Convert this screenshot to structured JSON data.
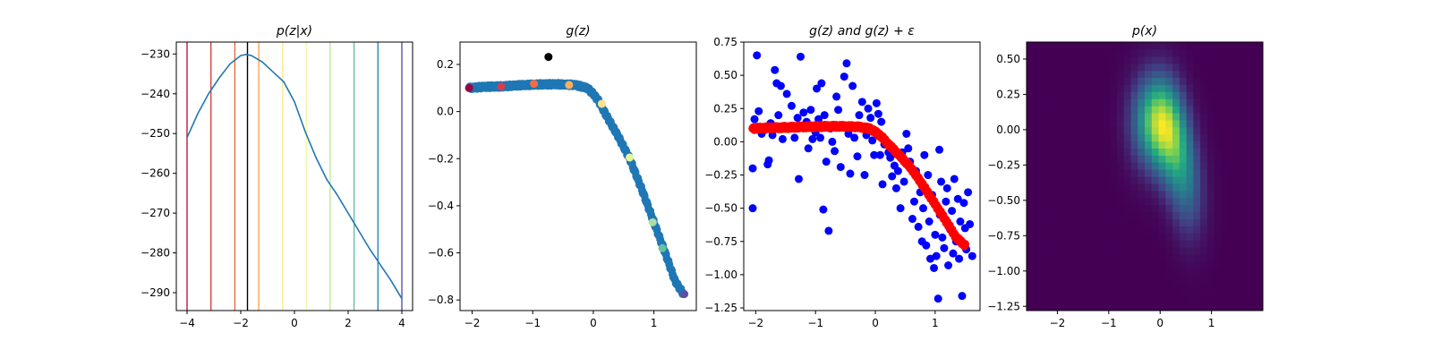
{
  "chart_data": [
    {
      "type": "line",
      "title": "p(z|x)",
      "xlim": [
        -4.4,
        4.4
      ],
      "ylim": [
        -294.5,
        -227.0
      ],
      "xticks": [
        "−4",
        "−2",
        "0",
        "2",
        "4"
      ],
      "xtick_values": [
        -4,
        -2,
        0,
        2,
        4
      ],
      "yticks": [
        "−290",
        "−280",
        "−270",
        "−260",
        "−250",
        "−240",
        "−230"
      ],
      "ytick_values": [
        -290,
        -280,
        -270,
        -260,
        -250,
        -240,
        -230
      ],
      "series": [
        {
          "color": "#1f77b4",
          "x": [
            -4.0,
            -3.6,
            -3.2,
            -2.8,
            -2.4,
            -2.0,
            -1.8,
            -1.6,
            -1.2,
            -0.8,
            -0.4,
            0.0,
            0.4,
            0.8,
            1.2,
            1.3,
            1.6,
            2.0,
            2.4,
            2.8,
            3.2,
            3.6,
            4.0
          ],
          "y": [
            -251.0,
            -245.0,
            -240.0,
            -236.0,
            -232.5,
            -230.4,
            -230.1,
            -230.4,
            -232.0,
            -234.5,
            -237.0,
            -242.0,
            -249.5,
            -256.0,
            -261.5,
            -262.5,
            -265.5,
            -270.0,
            -274.5,
            -279.0,
            -283.0,
            -287.0,
            -291.5
          ]
        }
      ],
      "vlines": [
        {
          "x": -4.0,
          "color": "#c4153c"
        },
        {
          "x": -3.11,
          "color": "#d8433f"
        },
        {
          "x": -2.22,
          "color": "#f1683c"
        },
        {
          "x": -1.33,
          "color": "#fca453"
        },
        {
          "x": -0.44,
          "color": "#fde98e"
        },
        {
          "x": 0.44,
          "color": "#f3f89f"
        },
        {
          "x": 1.33,
          "color": "#c3e89c"
        },
        {
          "x": 2.22,
          "color": "#64c2a6"
        },
        {
          "x": 3.11,
          "color": "#2f86bb"
        },
        {
          "x": 4.0,
          "color": "#5e4fa2"
        },
        {
          "x": -1.75,
          "color": "#000000"
        }
      ]
    },
    {
      "type": "scatter",
      "title": "g(z)",
      "xlim": [
        -2.2,
        1.7
      ],
      "ylim": [
        -0.845,
        0.295
      ],
      "xticks": [
        "−2",
        "−1",
        "0",
        "1"
      ],
      "xtick_values": [
        -2,
        -1,
        0,
        1
      ],
      "yticks": [
        "−0.8",
        "−0.6",
        "−0.4",
        "−0.2",
        "0.0",
        "0.2"
      ],
      "ytick_values": [
        -0.8,
        -0.6,
        -0.4,
        -0.2,
        0.0,
        0.2
      ],
      "curve_color": "#1f77b4",
      "curve": {
        "x": [
          -2.05,
          -1.8,
          -1.5,
          -1.2,
          -0.9,
          -0.6,
          -0.3,
          -0.1,
          0.0,
          0.1,
          0.2,
          0.4,
          0.6,
          0.8,
          1.0,
          1.2,
          1.35,
          1.5
        ],
        "y": [
          0.1,
          0.105,
          0.107,
          0.112,
          0.115,
          0.116,
          0.113,
          0.1,
          0.075,
          0.04,
          -0.01,
          -0.1,
          -0.2,
          -0.33,
          -0.47,
          -0.61,
          -0.72,
          -0.78
        ]
      },
      "highlight_points": [
        {
          "x": -2.05,
          "y": 0.1,
          "color": "#9e0142"
        },
        {
          "x": -1.52,
          "y": 0.106,
          "color": "#d53e4f"
        },
        {
          "x": -0.98,
          "y": 0.118,
          "color": "#f46d43"
        },
        {
          "x": -0.4,
          "y": 0.113,
          "color": "#fdae61"
        },
        {
          "x": 0.14,
          "y": 0.033,
          "color": "#fee08b"
        },
        {
          "x": 0.6,
          "y": -0.195,
          "color": "#e6f598"
        },
        {
          "x": 0.98,
          "y": -0.47,
          "color": "#abdda4"
        },
        {
          "x": 1.14,
          "y": -0.58,
          "color": "#66c2a5"
        },
        {
          "x": 1.5,
          "y": -0.775,
          "color": "#5e4fa2"
        }
      ],
      "marker_point": {
        "x": -0.74,
        "y": 0.232,
        "color": "#000000"
      }
    },
    {
      "type": "scatter",
      "title": "g(z) and g(z) + ε",
      "xlim": [
        -2.2,
        1.75
      ],
      "ylim": [
        -1.27,
        0.75
      ],
      "xticks": [
        "−2",
        "−1",
        "0",
        "1"
      ],
      "xtick_values": [
        -2,
        -1,
        0,
        1
      ],
      "yticks": [
        "−1.25",
        "−1.00",
        "−0.75",
        "−0.50",
        "−0.25",
        "0.00",
        "0.25",
        "0.50",
        "0.75"
      ],
      "ytick_values": [
        -1.25,
        -1.0,
        -0.75,
        -0.5,
        -0.25,
        0.0,
        0.25,
        0.5,
        0.75
      ],
      "noisy_color": "#0000ff",
      "curve_color": "#ff0000",
      "curve": {
        "x": [
          -2.05,
          -1.8,
          -1.5,
          -1.2,
          -0.9,
          -0.6,
          -0.3,
          -0.1,
          0.0,
          0.1,
          0.2,
          0.4,
          0.6,
          0.8,
          1.0,
          1.2,
          1.35,
          1.5
        ],
        "y": [
          0.1,
          0.105,
          0.107,
          0.112,
          0.115,
          0.116,
          0.113,
          0.1,
          0.075,
          0.04,
          -0.01,
          -0.1,
          -0.2,
          -0.33,
          -0.47,
          -0.61,
          -0.72,
          -0.78
        ]
      },
      "noisy_points": [
        [
          -2.05,
          -0.5
        ],
        [
          -2.05,
          -0.2
        ],
        [
          -2.02,
          0.17
        ],
        [
          -1.98,
          0.65
        ],
        [
          -1.95,
          0.23
        ],
        [
          -1.9,
          0.06
        ],
        [
          -1.85,
          0.09
        ],
        [
          -1.8,
          -0.17
        ],
        [
          -1.78,
          -0.14
        ],
        [
          -1.75,
          0.14
        ],
        [
          -1.72,
          0.05
        ],
        [
          -1.68,
          0.54
        ],
        [
          -1.65,
          0.44
        ],
        [
          -1.62,
          0.2
        ],
        [
          -1.58,
          0.42
        ],
        [
          -1.55,
          0.02
        ],
        [
          -1.52,
          0.12
        ],
        [
          -1.48,
          0.36
        ],
        [
          -1.45,
          0.1
        ],
        [
          -1.4,
          0.27
        ],
        [
          -1.35,
          0.03
        ],
        [
          -1.3,
          0.18
        ],
        [
          -1.28,
          -0.28
        ],
        [
          -1.25,
          0.64
        ],
        [
          -1.2,
          0.22
        ],
        [
          -1.15,
          0.15
        ],
        [
          -1.12,
          -0.05
        ],
        [
          -1.08,
          0.24
        ],
        [
          -1.05,
          0.02
        ],
        [
          -1.0,
          0.07
        ],
        [
          -0.98,
          0.4
        ],
        [
          -0.95,
          0.17
        ],
        [
          -0.92,
          0.03
        ],
        [
          -0.9,
          0.44
        ],
        [
          -0.87,
          -0.51
        ],
        [
          -0.85,
          0.2
        ],
        [
          -0.82,
          -0.15
        ],
        [
          -0.78,
          -0.67
        ],
        [
          -0.75,
          0.1
        ],
        [
          -0.72,
          0.0
        ],
        [
          -0.68,
          -0.07
        ],
        [
          -0.65,
          0.34
        ],
        [
          -0.62,
          0.24
        ],
        [
          -0.58,
          -0.19
        ],
        [
          -0.55,
          0.11
        ],
        [
          -0.52,
          0.49
        ],
        [
          -0.48,
          0.59
        ],
        [
          -0.45,
          0.06
        ],
        [
          -0.42,
          -0.24
        ],
        [
          -0.38,
          0.42
        ],
        [
          -0.35,
          0.03
        ],
        [
          -0.3,
          -0.11
        ],
        [
          -0.27,
          0.2
        ],
        [
          -0.22,
          0.3
        ],
        [
          -0.18,
          -0.25
        ],
        [
          -0.15,
          0.05
        ],
        [
          -0.12,
          0.25
        ],
        [
          -0.08,
          0.18
        ],
        [
          -0.05,
          0.01
        ],
        [
          -0.02,
          -0.1
        ],
        [
          0.02,
          0.29
        ],
        [
          0.05,
          0.21
        ],
        [
          0.08,
          -0.1
        ],
        [
          0.1,
          0.15
        ],
        [
          0.12,
          -0.32
        ],
        [
          0.15,
          -0.02
        ],
        [
          0.18,
          0.0
        ],
        [
          0.22,
          -0.08
        ],
        [
          0.25,
          -0.12
        ],
        [
          0.28,
          -0.26
        ],
        [
          0.32,
          -0.18
        ],
        [
          0.35,
          -0.35
        ],
        [
          0.38,
          -0.22
        ],
        [
          0.42,
          -0.5
        ],
        [
          0.45,
          -0.08
        ],
        [
          0.48,
          -0.3
        ],
        [
          0.52,
          0.06
        ],
        [
          0.55,
          -0.05
        ],
        [
          0.58,
          -0.15
        ],
        [
          0.62,
          -0.58
        ],
        [
          0.65,
          -0.45
        ],
        [
          0.68,
          -0.22
        ],
        [
          0.72,
          -0.64
        ],
        [
          0.75,
          -0.38
        ],
        [
          0.78,
          -0.75
        ],
        [
          0.8,
          -0.5
        ],
        [
          0.82,
          -0.1
        ],
        [
          0.85,
          -0.78
        ],
        [
          0.88,
          -0.25
        ],
        [
          0.9,
          -0.6
        ],
        [
          0.92,
          -0.88
        ],
        [
          0.95,
          -0.4
        ],
        [
          0.98,
          -0.95
        ],
        [
          1.0,
          -0.7
        ],
        [
          1.02,
          -0.86
        ],
        [
          1.05,
          -1.18
        ],
        [
          1.07,
          -0.06
        ],
        [
          1.08,
          -0.55
        ],
        [
          1.1,
          -0.3
        ],
        [
          1.12,
          -0.72
        ],
        [
          1.15,
          -0.8
        ],
        [
          1.18,
          -0.45
        ],
        [
          1.2,
          -0.35
        ],
        [
          1.22,
          -0.93
        ],
        [
          1.25,
          -0.66
        ],
        [
          1.28,
          -0.52
        ],
        [
          1.3,
          -0.84
        ],
        [
          1.32,
          -0.28
        ],
        [
          1.35,
          -0.75
        ],
        [
          1.38,
          -0.43
        ],
        [
          1.4,
          -0.88
        ],
        [
          1.42,
          -0.6
        ],
        [
          1.45,
          -1.16
        ],
        [
          1.48,
          -0.46
        ],
        [
          1.5,
          -0.65
        ],
        [
          1.52,
          -0.81
        ],
        [
          1.55,
          -0.38
        ],
        [
          1.58,
          -0.62
        ],
        [
          1.62,
          -0.86
        ]
      ]
    },
    {
      "type": "heatmap",
      "title": "p(x)",
      "xlim": [
        -2.6,
        2.0
      ],
      "ylim": [
        -1.28,
        0.62
      ],
      "xticks": [
        "−2",
        "−1",
        "0",
        "1"
      ],
      "xtick_values": [
        -2,
        -1,
        0,
        1
      ],
      "yticks": [
        "−1.25",
        "−1.00",
        "−0.75",
        "−0.50",
        "−0.25",
        "0.00",
        "0.25",
        "0.50"
      ],
      "ytick_values": [
        -1.25,
        -1.0,
        -0.75,
        -0.5,
        -0.25,
        0.0,
        0.25,
        0.5
      ],
      "colormap": "viridis",
      "low_color": "#440154",
      "high_color": "#fde725"
    }
  ]
}
